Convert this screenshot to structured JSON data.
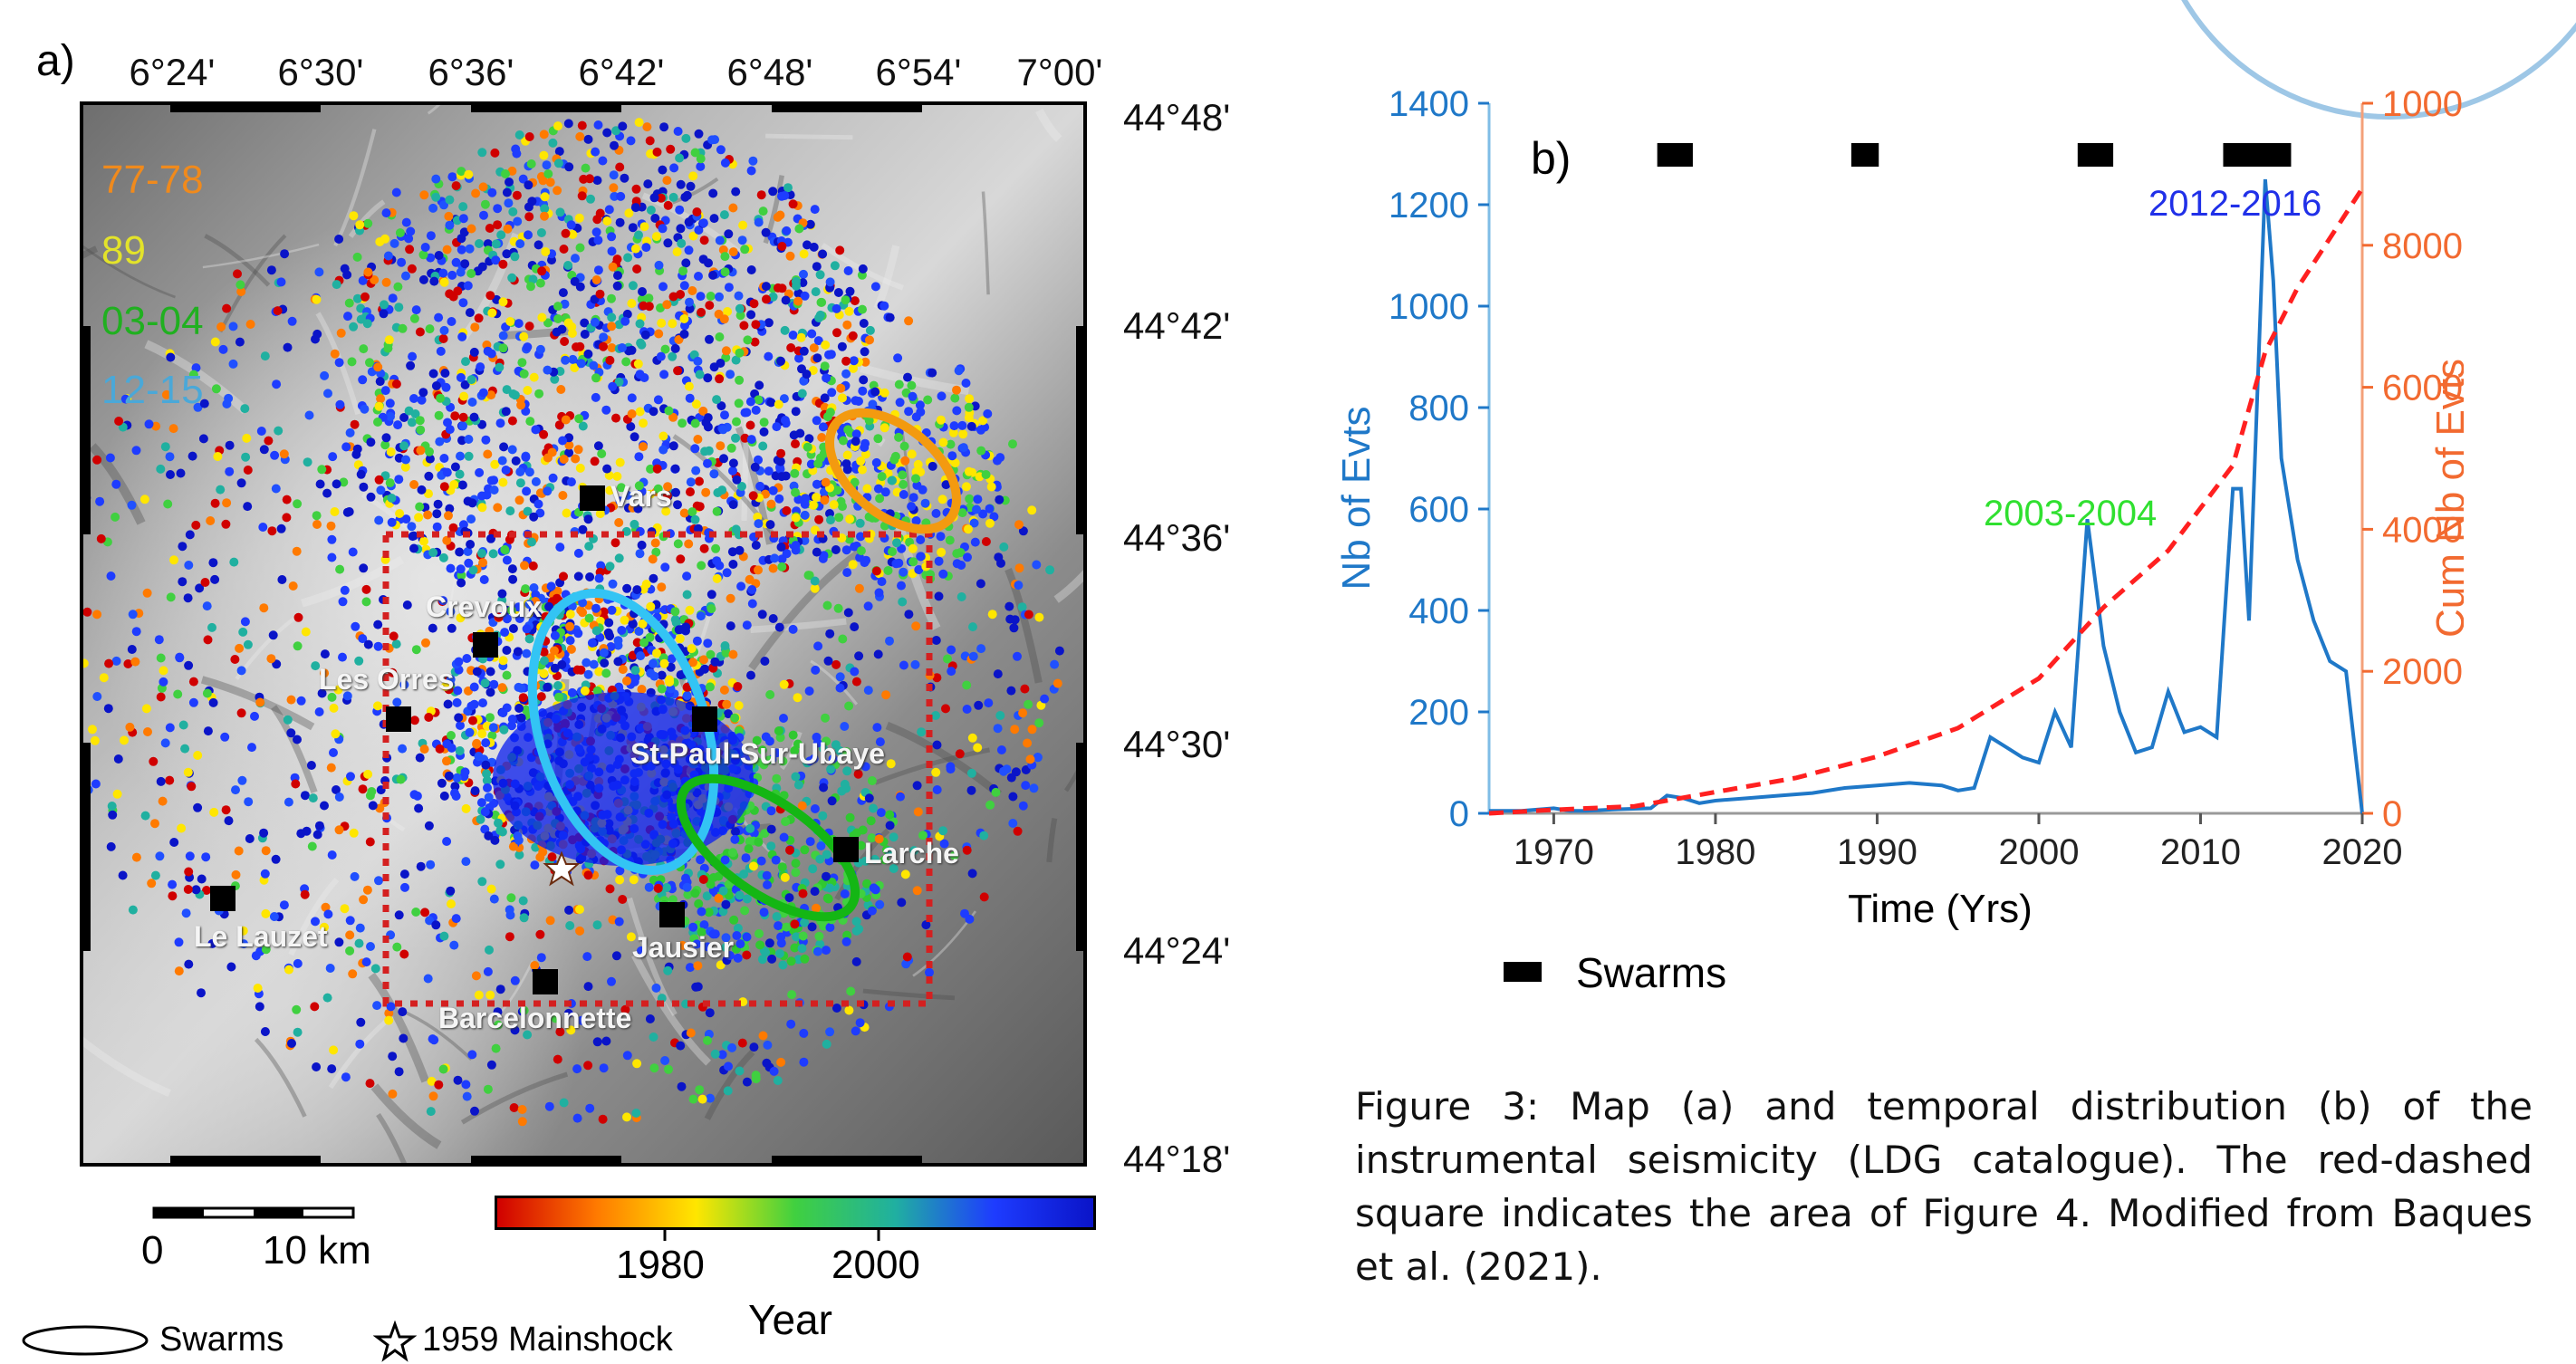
{
  "figure": {
    "panel_a_label": "a)",
    "panel_b_label": "b)",
    "caption": "Figure 3: Map (a) and temporal distribution (b) of the instrumental seismicity (LDG catalogue). The red-dashed square indicates the area of Figure 4. Modified from Baques et al. (2021)."
  },
  "map": {
    "lon_labels": [
      "6°24'",
      "6°30'",
      "6°36'",
      "6°42'",
      "6°48'",
      "6°54'",
      "7°00'"
    ],
    "lat_labels": [
      "44°48'",
      "44°42'",
      "44°36'",
      "44°30'",
      "44°24'",
      "44°18'"
    ],
    "swarm_period_labels": [
      {
        "text": "77-78",
        "color": "#f08a1c"
      },
      {
        "text": "89",
        "color": "#e3e32a"
      },
      {
        "text": "03-04",
        "color": "#20b020"
      },
      {
        "text": "12-15",
        "color": "#4aa8d8"
      }
    ],
    "towns": [
      "Vars",
      "Crevoux",
      "Les Orres",
      "St-Paul-Sur-Ubaye",
      "Larche",
      "Le Lauzet",
      "Jausier",
      "Barcelonnette"
    ],
    "scale_bar": {
      "start": "0",
      "end": "10 km"
    },
    "colorbar": {
      "ticks": [
        "1980",
        "2000"
      ],
      "label": "Year",
      "colors": [
        "#d00000",
        "#ff7a00",
        "#ffe600",
        "#40d040",
        "#20b0a0",
        "#1e3cff",
        "#0a14c8"
      ]
    },
    "legend": {
      "swarms": "Swarms",
      "mainshock": "1959 Mainshock"
    }
  },
  "chart_data": {
    "type": "line",
    "xlabel": "Time (Yrs)",
    "ylabel": "Nb of Evts",
    "y2label": "Cum Nb of Evts",
    "xlim": [
      1966,
      2020
    ],
    "ylim": [
      0,
      1400
    ],
    "y2lim": [
      0,
      10000
    ],
    "x_ticks": [
      "1970",
      "1980",
      "1990",
      "2000",
      "2010",
      "2020"
    ],
    "y_ticks": [
      "0",
      "200",
      "400",
      "600",
      "800",
      "1000",
      "1200",
      "1400"
    ],
    "y2_ticks": [
      "0",
      "2000",
      "4000",
      "6000",
      "8000",
      "10000"
    ],
    "series": [
      {
        "name": "Nb of Evts",
        "color": "#1f78c8",
        "x": [
          1966,
          1968,
          1970,
          1971,
          1972,
          1974,
          1976,
          1977,
          1978,
          1979,
          1980,
          1982,
          1984,
          1986,
          1988,
          1990,
          1992,
          1994,
          1995,
          1996,
          1997,
          1998,
          1999,
          2000,
          2001,
          2002,
          2003,
          2004,
          2005,
          2006,
          2007,
          2008,
          2009,
          2010,
          2011,
          2012,
          2012.5,
          2013,
          2014,
          2014.5,
          2015,
          2016,
          2017,
          2018,
          2019,
          2020
        ],
        "values": [
          5,
          5,
          10,
          5,
          5,
          8,
          10,
          35,
          30,
          20,
          25,
          30,
          35,
          40,
          50,
          55,
          60,
          55,
          45,
          50,
          150,
          130,
          110,
          100,
          200,
          130,
          580,
          330,
          200,
          120,
          130,
          240,
          160,
          170,
          150,
          640,
          640,
          380,
          1250,
          1050,
          700,
          500,
          380,
          300,
          280,
          0
        ]
      },
      {
        "name": "Cum Nb of Evts",
        "color": "#ff2020",
        "x": [
          1966,
          1970,
          1975,
          1980,
          1985,
          1990,
          1995,
          2000,
          2002,
          2004,
          2006,
          2008,
          2010,
          2012,
          2014,
          2016,
          2018,
          2020
        ],
        "values": [
          0,
          50,
          100,
          300,
          500,
          800,
          1200,
          1900,
          2400,
          2900,
          3300,
          3700,
          4300,
          4900,
          6500,
          7400,
          8100,
          8800
        ]
      }
    ],
    "swarm_periods": [
      [
        1977,
        1978
      ],
      [
        1989,
        1989.5
      ],
      [
        2003,
        2004
      ],
      [
        2012,
        2015
      ]
    ],
    "annotations": [
      {
        "text": "2012-2016",
        "color": "#2030e8"
      },
      {
        "text": "2003-2004",
        "color": "#30e030"
      }
    ],
    "legend": {
      "swarms": "Swarms"
    },
    "grid": false
  }
}
